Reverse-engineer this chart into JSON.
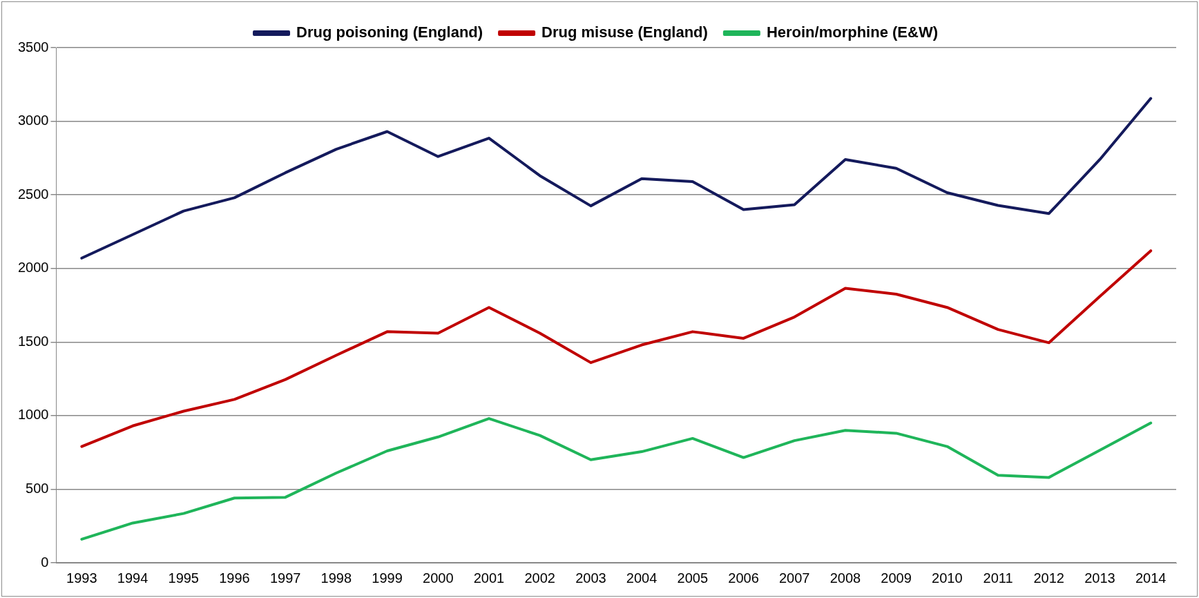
{
  "chart_data": {
    "type": "line",
    "categories": [
      "1993",
      "1994",
      "1995",
      "1996",
      "1997",
      "1998",
      "1999",
      "2000",
      "2001",
      "2002",
      "2003",
      "2004",
      "2005",
      "2006",
      "2007",
      "2008",
      "2009",
      "2010",
      "2011",
      "2012",
      "2013",
      "2014"
    ],
    "series": [
      {
        "name": "Drug poisoning (England)",
        "color": "#141a5c",
        "values": [
          2070,
          2230,
          2390,
          2480,
          2650,
          2810,
          2930,
          2760,
          2885,
          2630,
          2425,
          2610,
          2590,
          2400,
          2433,
          2740,
          2680,
          2515,
          2428,
          2373,
          2740,
          3155
        ]
      },
      {
        "name": "Drug misuse (England)",
        "color": "#c00000",
        "values": [
          790,
          930,
          1030,
          1110,
          1245,
          1410,
          1570,
          1560,
          1735,
          1560,
          1360,
          1480,
          1570,
          1525,
          1670,
          1865,
          1825,
          1735,
          1585,
          1495,
          1810,
          2120
        ]
      },
      {
        "name": "Heroin/morphine (E&W)",
        "color": "#1fb55a",
        "values": [
          160,
          270,
          335,
          440,
          445,
          610,
          760,
          855,
          980,
          865,
          700,
          755,
          845,
          715,
          830,
          900,
          880,
          790,
          595,
          580,
          765,
          950
        ]
      }
    ],
    "ylim": [
      0,
      3500
    ],
    "yticks": [
      0,
      500,
      1000,
      1500,
      2000,
      2500,
      3000,
      3500
    ],
    "grid": "y",
    "legend": "top",
    "marker": "none",
    "line_style": "solid"
  }
}
